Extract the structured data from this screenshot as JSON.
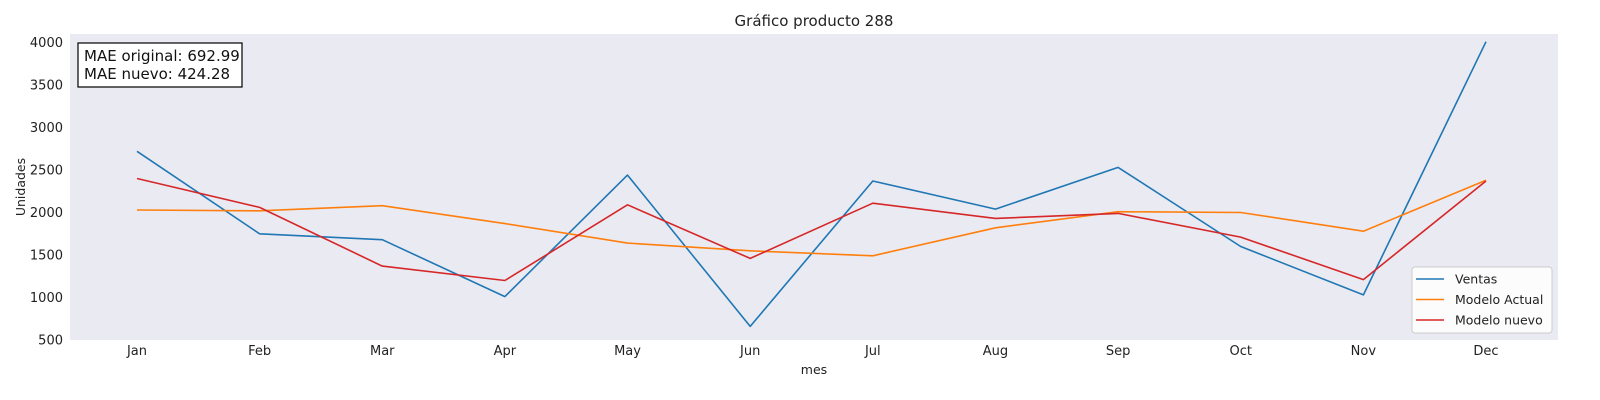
{
  "chart_data": {
    "type": "line",
    "title": "Gráfico producto 288",
    "xlabel": "mes",
    "ylabel": "Unidades",
    "categories": [
      "Jan",
      "Feb",
      "Mar",
      "Apr",
      "May",
      "Jun",
      "Jul",
      "Aug",
      "Sep",
      "Oct",
      "Nov",
      "Dec"
    ],
    "ylim": [
      500,
      4100
    ],
    "yticks": [
      500,
      1000,
      1500,
      2000,
      2500,
      3000,
      3500,
      4000
    ],
    "grid": false,
    "legend_position": "lower-right",
    "series": [
      {
        "name": "Ventas",
        "color": "#1f77b4",
        "values": [
          2720,
          1750,
          1680,
          1010,
          2440,
          660,
          2370,
          2040,
          2530,
          1600,
          1030,
          4010
        ]
      },
      {
        "name": "Modelo Actual",
        "color": "#ff7f0e",
        "values": [
          2030,
          2020,
          2080,
          1870,
          1640,
          1550,
          1490,
          1820,
          2010,
          2000,
          1780,
          2380
        ]
      },
      {
        "name": "Modelo nuevo",
        "color": "#d62728",
        "values": [
          2400,
          2060,
          1370,
          1200,
          2090,
          1460,
          2110,
          1930,
          1990,
          1710,
          1210,
          2370
        ]
      }
    ],
    "annotation": {
      "lines": [
        "MAE original: 692.99",
        "MAE nuevo: 424.28"
      ]
    }
  }
}
